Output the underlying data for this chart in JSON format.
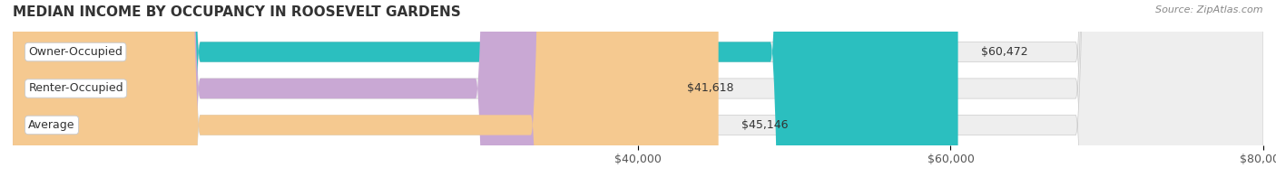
{
  "title": "MEDIAN INCOME BY OCCUPANCY IN ROOSEVELT GARDENS",
  "source": "Source: ZipAtlas.com",
  "categories": [
    "Owner-Occupied",
    "Renter-Occupied",
    "Average"
  ],
  "values": [
    60472,
    41618,
    45146
  ],
  "bar_colors": [
    "#2bbfbf",
    "#c9a8d4",
    "#f5c990"
  ],
  "bar_bg_color": "#eeeeee",
  "value_labels": [
    "$60,472",
    "$41,618",
    "$45,146"
  ],
  "xlim": [
    0,
    80000
  ],
  "xticks": [
    40000,
    60000,
    80000
  ],
  "xtick_labels": [
    "$40,000",
    "$60,000",
    "$80,000"
  ],
  "title_fontsize": 11,
  "label_fontsize": 9,
  "source_fontsize": 8,
  "figsize": [
    14.06,
    1.96
  ],
  "dpi": 100
}
